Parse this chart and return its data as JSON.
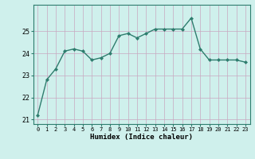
{
  "x": [
    0,
    1,
    2,
    3,
    4,
    5,
    6,
    7,
    8,
    9,
    10,
    11,
    12,
    13,
    14,
    15,
    16,
    17,
    18,
    19,
    20,
    21,
    22,
    23
  ],
  "y": [
    21.2,
    22.8,
    23.3,
    24.1,
    24.2,
    24.1,
    23.7,
    23.8,
    24.0,
    24.8,
    24.9,
    24.7,
    24.9,
    25.1,
    25.1,
    25.1,
    25.1,
    25.6,
    24.2,
    23.7,
    23.7,
    23.7,
    23.7,
    23.6
  ],
  "xlabel": "Humidex (Indice chaleur)",
  "ylabel": "",
  "title": "",
  "xlim": [
    -0.5,
    23.5
  ],
  "ylim": [
    20.8,
    26.2
  ],
  "yticks": [
    21,
    22,
    23,
    24,
    25
  ],
  "xticks": [
    0,
    1,
    2,
    3,
    4,
    5,
    6,
    7,
    8,
    9,
    10,
    11,
    12,
    13,
    14,
    15,
    16,
    17,
    18,
    19,
    20,
    21,
    22,
    23
  ],
  "line_color": "#2e7d6e",
  "marker_color": "#2e7d6e",
  "bg_color": "#cff0ec",
  "grid_color": "#c8a8c0",
  "spine_color": "#2e7d6e"
}
